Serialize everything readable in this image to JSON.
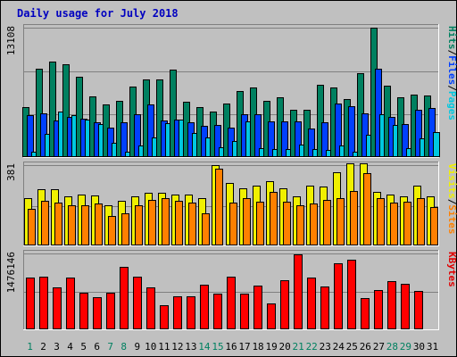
{
  "chart_data": {
    "type": "bar",
    "title": "Daily usage for July 2018",
    "categories": [
      "1",
      "2",
      "3",
      "4",
      "5",
      "6",
      "7",
      "8",
      "9",
      "10",
      "11",
      "12",
      "13",
      "14",
      "15",
      "16",
      "17",
      "18",
      "19",
      "20",
      "21",
      "22",
      "23",
      "24",
      "25",
      "26",
      "27",
      "28",
      "29",
      "30",
      "31"
    ],
    "weekend_days": [
      "1",
      "7",
      "8",
      "14",
      "15",
      "21",
      "22",
      "28",
      "29"
    ],
    "panels": [
      {
        "id": "hits-files-pages",
        "max_label": "13108",
        "ymax": 13108,
        "axis_labels": [
          {
            "text": "Pages",
            "color": "#00c8e0"
          },
          {
            "text": "Files",
            "color": "#0040ff"
          },
          {
            "text": "Hits",
            "color": "#008060"
          }
        ],
        "series": [
          {
            "name": "Hits",
            "color": "#008060",
            "values": [
              5000,
              8900,
              9600,
              9300,
              8100,
              6100,
              5300,
              5700,
              7100,
              7800,
              7800,
              8800,
              5600,
              5000,
              4600,
              5400,
              6600,
              7000,
              5700,
              6000,
              4800,
              4800,
              7300,
              7000,
              5800,
              8400,
              13000,
              7200,
              6000,
              6300,
              6200
            ]
          },
          {
            "name": "Files",
            "color": "#0040ff",
            "values": [
              4200,
              4400,
              3700,
              4000,
              3900,
              3500,
              3000,
              3500,
              4300,
              5300,
              3700,
              3800,
              3500,
              3100,
              3200,
              3000,
              4300,
              4300,
              3600,
              3600,
              3600,
              2900,
              3500,
              5400,
              5100,
              4400,
              8900,
              4000,
              3300,
              4800,
              4900
            ]
          },
          {
            "name": "Pages",
            "color": "#00c8e0",
            "values": [
              550,
              2300,
              4600,
              4200,
              3800,
              3300,
              1400,
              500,
              1200,
              2000,
              3400,
              3800,
              2400,
              2000,
              1000,
              1600,
              3600,
              900,
              800,
              800,
              1300,
              800,
              700,
              1200,
              500,
              2200,
              4300,
              3200,
              900,
              1900,
              2500
            ]
          }
        ]
      },
      {
        "id": "visits-sites",
        "max_label": "381",
        "ymax": 381,
        "axis_labels": [
          {
            "text": "Sites",
            "color": "#ff8000"
          },
          {
            "text": "Visits",
            "color": "#f0f000"
          }
        ],
        "series": [
          {
            "name": "Visits",
            "color": "#f0f000",
            "values": [
              220,
              265,
              265,
              230,
              240,
              235,
              190,
              210,
              230,
              245,
              245,
              240,
              240,
              220,
              375,
              295,
              270,
              280,
              300,
              270,
              230,
              280,
              275,
              345,
              385,
              385,
              250,
              240,
              230,
              280,
              230
            ]
          },
          {
            "name": "Sites",
            "color": "#ff8000",
            "values": [
              170,
              210,
              200,
              190,
              190,
              195,
              140,
              150,
              190,
              215,
              220,
              210,
              200,
              150,
              360,
              200,
              220,
              205,
              250,
              205,
              190,
              195,
              215,
              220,
              255,
              340,
              220,
              200,
              205,
              220,
              180
            ]
          }
        ]
      },
      {
        "id": "kbytes",
        "max_label": "1476146",
        "ymax": 1476146,
        "axis_labels": [
          {
            "text": "KBytes",
            "color": "#e00000"
          }
        ],
        "series": [
          {
            "name": "KBytes",
            "color": "#ff0000",
            "values": [
              990000,
              1010000,
              800000,
              1000000,
              700000,
              620000,
              710000,
              1200000,
              1020000,
              800000,
              470000,
              630000,
              630000,
              860000,
              680000,
              1020000,
              680000,
              840000,
              490000,
              940000,
              1450000,
              990000,
              820000,
              1270000,
              1340000,
              600000,
              760000,
              920000,
              870000,
              730000,
              0
            ]
          }
        ]
      }
    ]
  }
}
